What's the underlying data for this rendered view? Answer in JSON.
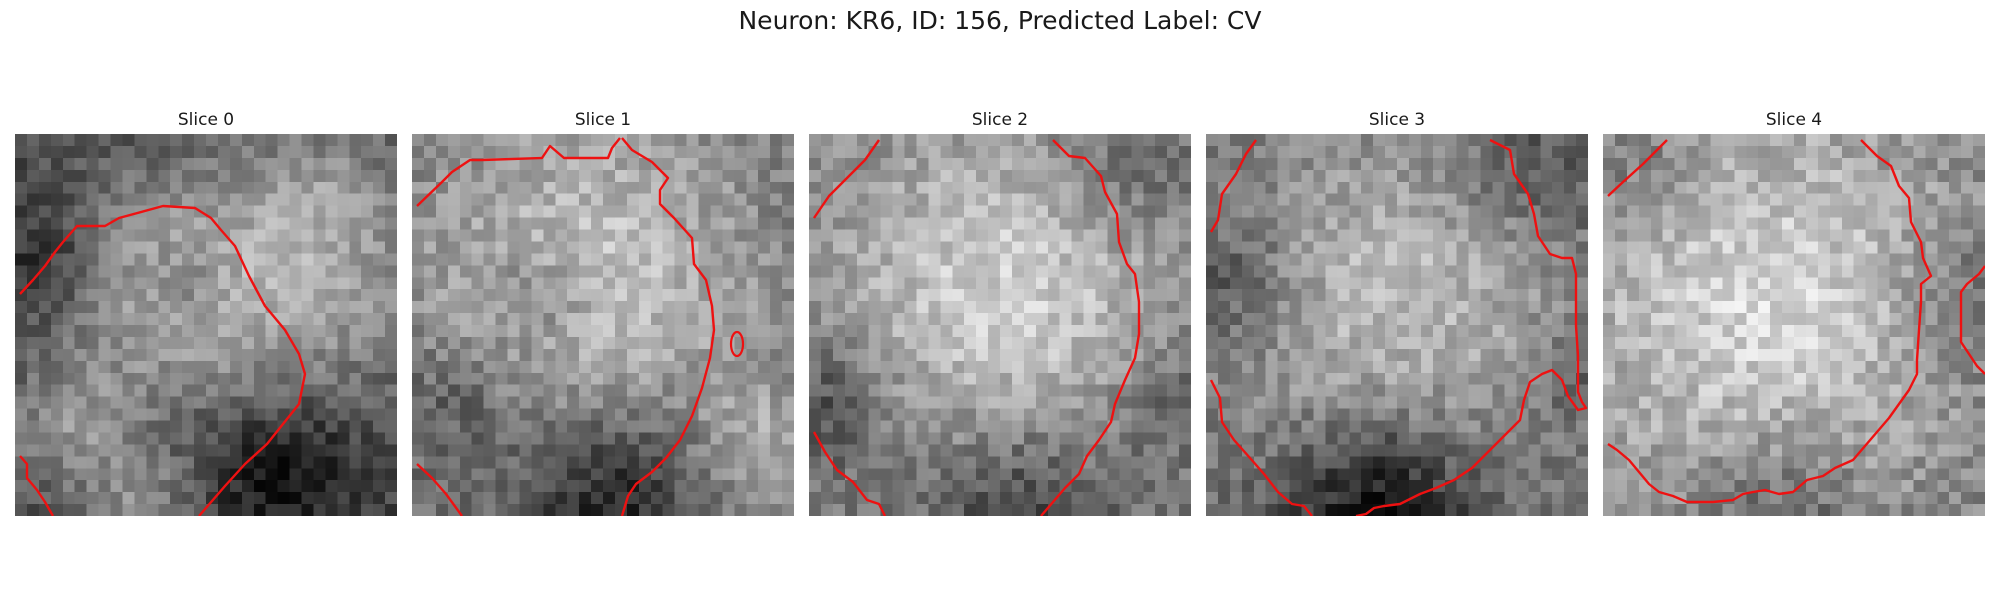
{
  "figure": {
    "title": "Neuron: KR6, ID: 156, Predicted Label: CV"
  },
  "colors": {
    "contour": "#ee1111"
  },
  "panels": [
    {
      "title": "Slice 0"
    },
    {
      "title": "Slice 1"
    },
    {
      "title": "Slice 2"
    },
    {
      "title": "Slice 3"
    },
    {
      "title": "Slice 4"
    }
  ]
}
